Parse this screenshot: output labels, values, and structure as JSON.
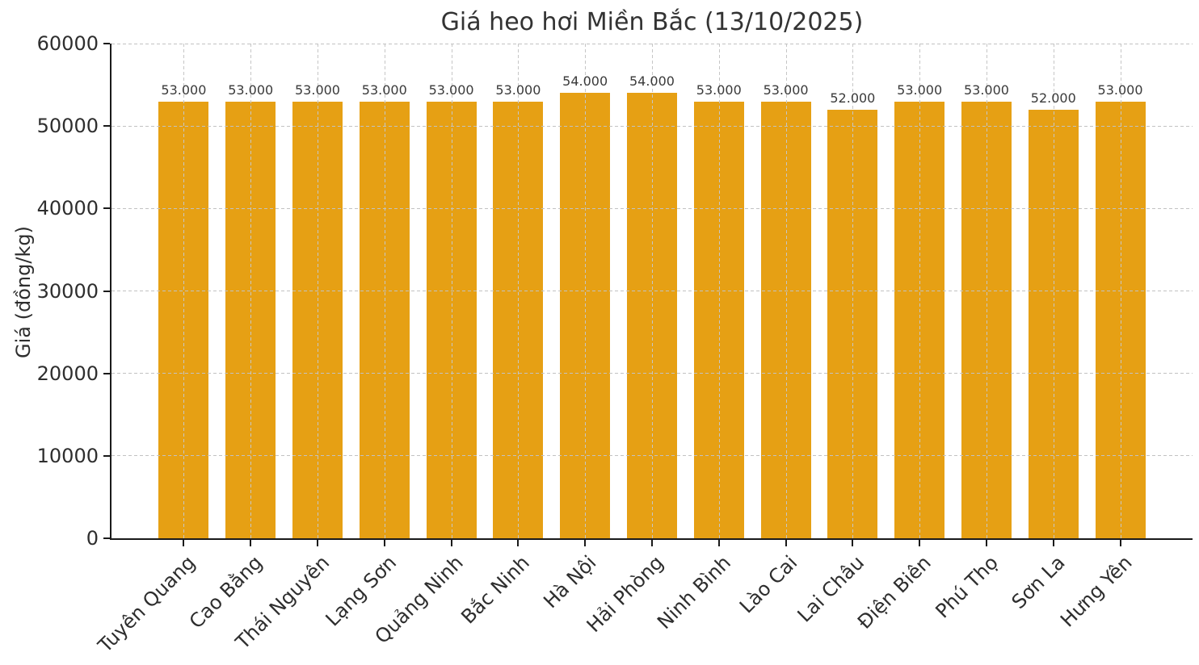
{
  "chart_data": {
    "type": "bar",
    "title": "Giá heo hơi Miền Bắc (13/10/2025)",
    "xlabel": "",
    "ylabel": "Giá (đồng/kg)",
    "categories": [
      "Tuyên Quang",
      "Cao Bằng",
      "Thái Nguyên",
      "Lạng Sơn",
      "Quảng Ninh",
      "Bắc Ninh",
      "Hà Nội",
      "Hải Phòng",
      "Ninh Bình",
      "Lào Cai",
      "Lai Châu",
      "Điện Biên",
      "Phú Thọ",
      "Sơn La",
      "Hưng Yên"
    ],
    "values": [
      53000,
      53000,
      53000,
      53000,
      53000,
      53000,
      54000,
      54000,
      53000,
      53000,
      52000,
      53000,
      53000,
      52000,
      53000
    ],
    "value_labels": [
      "53.000",
      "53.000",
      "53.000",
      "53.000",
      "53.000",
      "53.000",
      "54.000",
      "54.000",
      "53.000",
      "53.000",
      "52.000",
      "53.000",
      "53.000",
      "52.000",
      "53.000"
    ],
    "ylim": [
      0,
      60000
    ],
    "yticks": [
      0,
      10000,
      20000,
      30000,
      40000,
      50000,
      60000
    ],
    "ytick_labels": [
      "0",
      "10000",
      "20000",
      "30000",
      "40000",
      "50000",
      "60000"
    ],
    "xtick_rotation_deg": 45,
    "grid": "dashed both-axes drawn over bars",
    "legend": "none",
    "bar_color": "#E6A014",
    "gridline_color": "#c6c6c6",
    "axis_color": "#1a1a1a",
    "text_color": "#2e2e2e"
  }
}
